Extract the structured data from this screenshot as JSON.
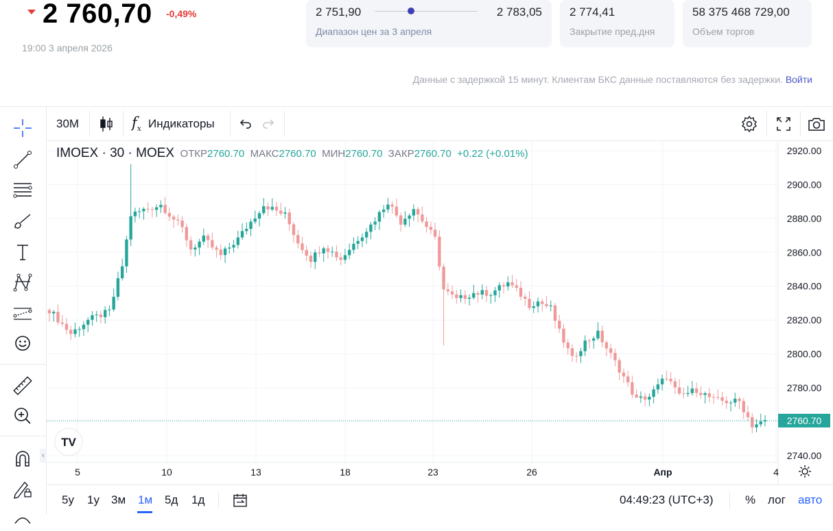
{
  "header": {
    "price": "2 760,70",
    "change": "-0,49%",
    "datetime": "19:00 3 апреля 2026",
    "range_low": "2 751,90",
    "range_high": "2 783,05",
    "range_position": 0.35,
    "range_label": "Диапазон цен за 3 апреля",
    "prev_close": "2 774,41",
    "prev_close_label": "Закрытие пред.дня",
    "volume": "58 375 468 729,00",
    "volume_label": "Объем торгов",
    "delay_notice": "Данные с задержкой 15 минут. Клиентам БКС данные поставляются без задержки.",
    "login_link": "Войти"
  },
  "toolbar": {
    "interval": "30M",
    "indicators": "Индикаторы"
  },
  "legend": {
    "symbol": "IMOEX · 30 · MOEX",
    "open_label": "ОТКР",
    "open": "2760.70",
    "high_label": "МАКС",
    "high": "2760.70",
    "low_label": "МИН",
    "low": "2760.70",
    "close_label": "ЗАКР",
    "close": "2760.70",
    "change": "+0.22 (+0.01%)"
  },
  "chart_data": {
    "type": "candlestick",
    "ylim": [
      2736,
      2926
    ],
    "y_ticks": [
      "2920.00",
      "2900.00",
      "2880.00",
      "2860.00",
      "2840.00",
      "2820.00",
      "2800.00",
      "2780.00",
      "2760.00",
      "2740.00"
    ],
    "x_ticks": [
      "5",
      "10",
      "13",
      "18",
      "23",
      "26",
      "Апр",
      "4"
    ],
    "current_price": "2760.70",
    "up_color": "#26a69a",
    "down_color": "#ef9a9a",
    "anchors": [
      [
        0,
        2826
      ],
      [
        5,
        2812
      ],
      [
        9,
        2820
      ],
      [
        14,
        2825
      ],
      [
        17,
        2852
      ],
      [
        19,
        2882
      ],
      [
        22,
        2885
      ],
      [
        26,
        2888
      ],
      [
        31,
        2874
      ],
      [
        33,
        2862
      ],
      [
        36,
        2868
      ],
      [
        40,
        2858
      ],
      [
        44,
        2868
      ],
      [
        47,
        2878
      ],
      [
        50,
        2888
      ],
      [
        55,
        2882
      ],
      [
        58,
        2866
      ],
      [
        61,
        2856
      ],
      [
        64,
        2864
      ],
      [
        68,
        2856
      ],
      [
        72,
        2868
      ],
      [
        75,
        2876
      ],
      [
        79,
        2890
      ],
      [
        82,
        2878
      ],
      [
        85,
        2886
      ],
      [
        90,
        2868
      ],
      [
        92,
        2838
      ],
      [
        95,
        2832
      ],
      [
        99,
        2836
      ],
      [
        103,
        2836
      ],
      [
        107,
        2842
      ],
      [
        110,
        2835
      ],
      [
        112,
        2829
      ],
      [
        114,
        2831
      ],
      [
        117,
        2827
      ],
      [
        119,
        2813
      ],
      [
        122,
        2797
      ],
      [
        125,
        2807
      ],
      [
        128,
        2812
      ],
      [
        133,
        2791
      ],
      [
        137,
        2773
      ],
      [
        140,
        2775
      ],
      [
        144,
        2787
      ],
      [
        147,
        2775
      ],
      [
        151,
        2779
      ],
      [
        155,
        2773
      ],
      [
        158,
        2772
      ],
      [
        161,
        2772
      ],
      [
        164,
        2758
      ],
      [
        167,
        2760
      ]
    ]
  },
  "bottom": {
    "ranges": [
      "5у",
      "1у",
      "3м",
      "1м",
      "5д",
      "1д"
    ],
    "active_range": "1м",
    "time": "04:49:23 (UTC+3)",
    "percent": "%",
    "log": "лог",
    "auto": "авто"
  }
}
